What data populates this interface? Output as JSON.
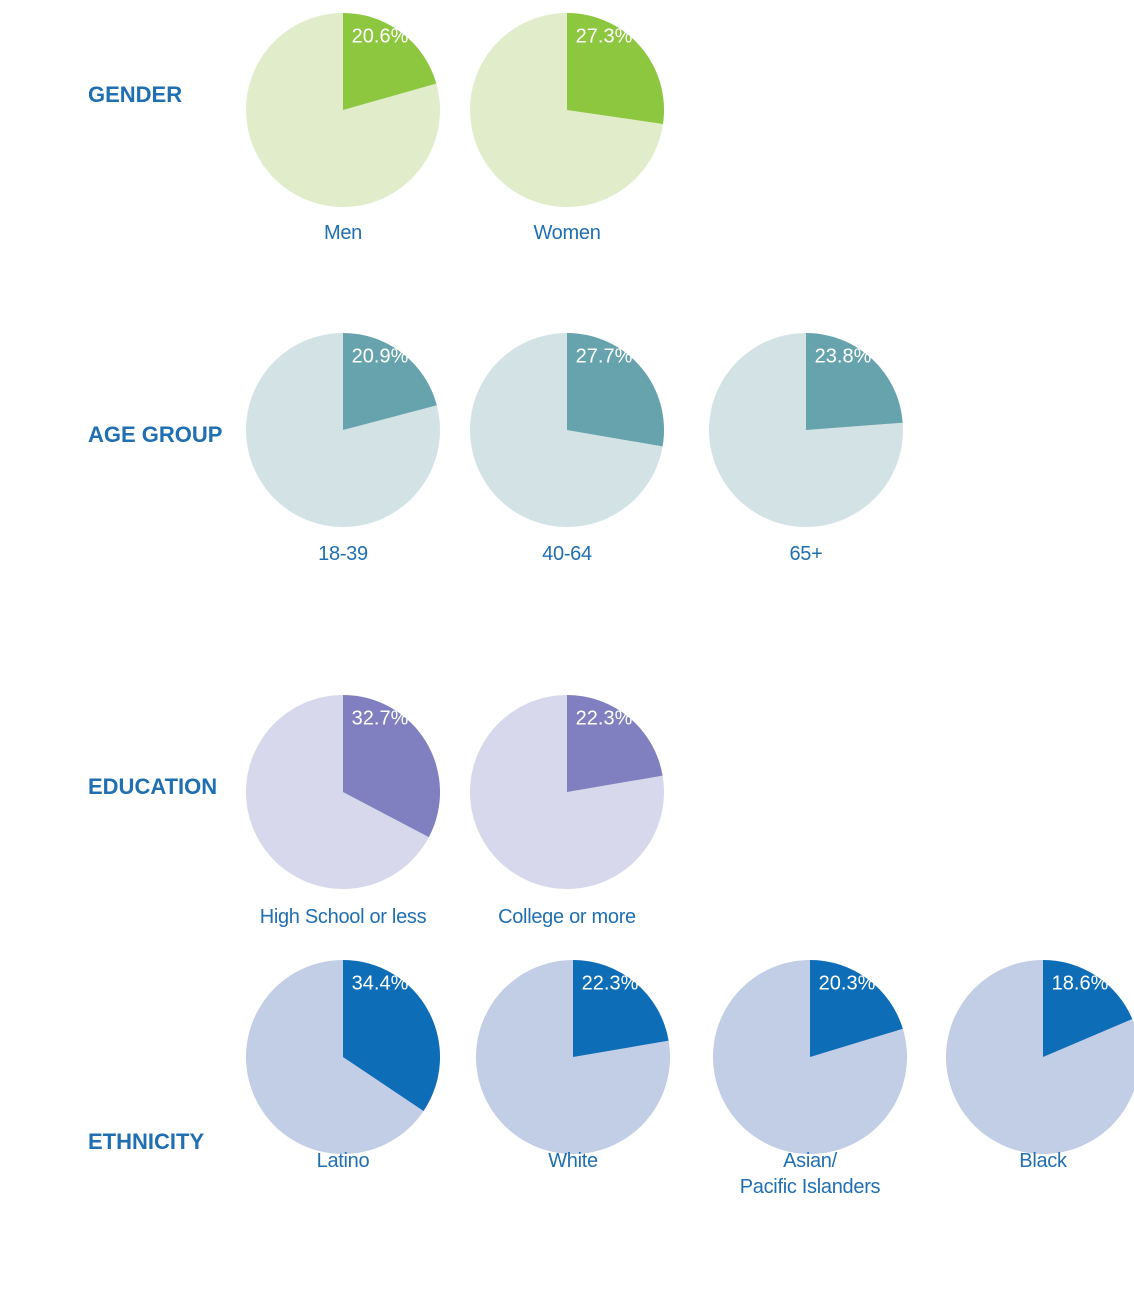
{
  "chart_data": [
    {
      "type": "pie",
      "title": "GENDER",
      "categories": [
        "Men",
        "Women"
      ],
      "values": [
        20.6,
        27.3
      ],
      "value_labels": [
        "20.6%",
        "27.3%"
      ],
      "color": "#8dc63f",
      "rest_color": "#e0ecca"
    },
    {
      "type": "pie",
      "title": "AGE GROUP",
      "categories": [
        "18-39",
        "40-64",
        "65+"
      ],
      "values": [
        20.9,
        27.7,
        23.8
      ],
      "value_labels": [
        "20.9%",
        "27.7%",
        "23.8%"
      ],
      "color": "#67a3ad",
      "rest_color": "#d3e3e5"
    },
    {
      "type": "pie",
      "title": "EDUCATION",
      "categories": [
        "High School or less",
        "College or more"
      ],
      "values": [
        32.7,
        22.3
      ],
      "value_labels": [
        "32.7%",
        "22.3%"
      ],
      "color": "#8080c0",
      "rest_color": "#d8d8ec"
    },
    {
      "type": "pie",
      "title": "ETHNICITY",
      "categories": [
        "Latino",
        "White",
        "Asian/\nPacific Islanders",
        "Black"
      ],
      "values": [
        34.4,
        22.3,
        20.3,
        18.6
      ],
      "value_labels": [
        "34.4%",
        "22.3%",
        "20.3%",
        "18.6%"
      ],
      "color": "#0d6db7",
      "rest_color": "#c2cde6"
    }
  ]
}
